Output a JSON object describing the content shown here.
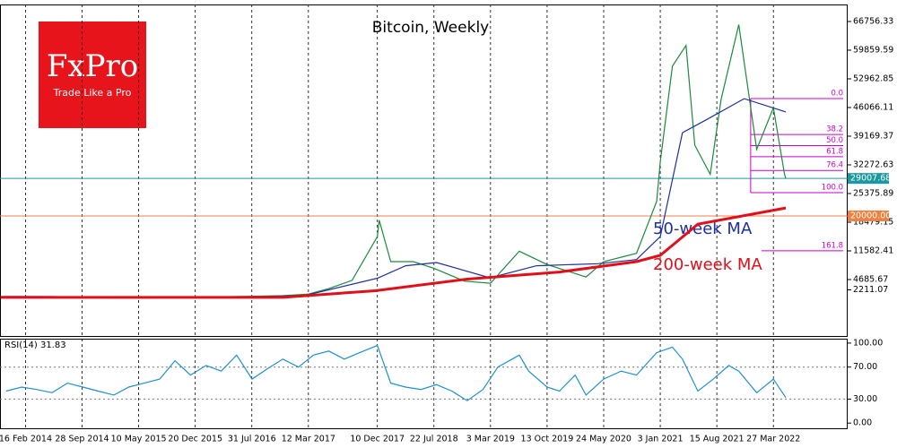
{
  "logo": {
    "name": "FxPro",
    "tagline": "Trade Like a Pro"
  },
  "chart_data": [
    {
      "type": "line",
      "title": "Bitcoin, Weekly",
      "grid": true,
      "xlim": [
        "2013-11-07",
        "2023-01-15"
      ],
      "xticks": [
        {
          "value": "2014-02-16",
          "label": "16 Feb 2014"
        },
        {
          "value": "2014-09-28",
          "label": "28 Sep 2014"
        },
        {
          "value": "2015-05-10",
          "label": "10 May 2015"
        },
        {
          "value": "2015-12-20",
          "label": "20 Dec 2015"
        },
        {
          "value": "2016-07-31",
          "label": "31 Jul 2016"
        },
        {
          "value": "2017-03-12",
          "label": "12 Mar 2017"
        },
        {
          "value": "2017-12-10",
          "label": "10 Dec 2017"
        },
        {
          "value": "2018-07-22",
          "label": "22 Jul 2018"
        },
        {
          "value": "2019-03-03",
          "label": "3 Mar 2019"
        },
        {
          "value": "2019-10-13",
          "label": "13 Oct 2019"
        },
        {
          "value": "2020-05-24",
          "label": "24 May 2020"
        },
        {
          "value": "2021-01-03",
          "label": "3 Jan 2021"
        },
        {
          "value": "2021-08-15",
          "label": "15 Aug 2021"
        },
        {
          "value": "2022-03-27",
          "label": "27 Mar 2022"
        }
      ],
      "ylim": [
        -8891,
        70851
      ],
      "yticks": [
        66756.33,
        59859.59,
        52962.85,
        46066.11,
        39169.37,
        32272.63,
        25375.89,
        18479.15,
        11582.41,
        4685.67,
        2211.07
      ],
      "series": [
        {
          "color": "#1c8a3c",
          "x": [
            "2013-11-10",
            "2014-02-16",
            "2014-08-01",
            "2015-01-15",
            "2015-06-01",
            "2015-12-01",
            "2016-06-01",
            "2016-12-01",
            "2017-03-12",
            "2017-06-01",
            "2017-09-01",
            "2017-12-10",
            "2017-12-17",
            "2018-02-01",
            "2018-05-01",
            "2018-07-22",
            "2018-11-20",
            "2019-03-03",
            "2019-06-25",
            "2019-10-13",
            "2020-03-15",
            "2020-05-24",
            "2020-10-01",
            "2020-12-20",
            "2021-01-03",
            "2021-02-20",
            "2021-04-15",
            "2021-05-20",
            "2021-07-20",
            "2021-09-01",
            "2021-11-10",
            "2022-01-20",
            "2022-03-27",
            "2022-05-10",
            "2022-05-15"
          ],
          "values": [
            600,
            600,
            550,
            250,
            230,
            430,
            600,
            800,
            1200,
            2500,
            4500,
            15000,
            19000,
            9000,
            9000,
            7400,
            4300,
            3800,
            11500,
            8300,
            5300,
            9000,
            11000,
            23500,
            33000,
            56000,
            61000,
            37000,
            30000,
            48000,
            66000,
            36000,
            46000,
            30000,
            29007.68
          ]
        },
        {
          "name": "50-week MA",
          "color": "#1f2fa0",
          "x": [
            "2013-11-10",
            "2014-06-01",
            "2015-06-01",
            "2016-06-01",
            "2017-03-01",
            "2017-12-10",
            "2018-04-01",
            "2018-08-01",
            "2019-03-01",
            "2019-09-01",
            "2020-05-01",
            "2020-10-01",
            "2021-01-03",
            "2021-04-01",
            "2021-07-01",
            "2021-12-01",
            "2022-05-15"
          ],
          "values": [
            600,
            600,
            300,
            400,
            900,
            5000,
            8000,
            8780,
            5100,
            8000,
            8500,
            9500,
            15000,
            40000,
            43000,
            48200,
            45000
          ]
        },
        {
          "name": "200-week MA",
          "color": "#e0101a",
          "x": [
            "2013-11-10",
            "2016-12-01",
            "2017-12-01",
            "2018-12-01",
            "2019-12-01",
            "2020-10-01",
            "2021-01-03",
            "2021-06-01",
            "2022-05-15"
          ],
          "values": [
            400,
            400,
            2000,
            4800,
            6500,
            9000,
            10500,
            18000,
            21900
          ]
        }
      ],
      "price_levels": [
        29007.68,
        {
          "value": 20000,
          "label": "20000.00"
        }
      ],
      "price_level_colors": [
        "#1a9aa0",
        "#f08040"
      ],
      "fib_start": "2021-12-27",
      "fib_color": "#cc00cc",
      "fib_levels": [
        {
          "label": "0.0",
          "price": 48222
        },
        {
          "label": "38.2",
          "price": 39580
        },
        {
          "label": "50.0",
          "price": 36911
        },
        {
          "label": "61.8",
          "price": 34242
        },
        {
          "label": "76.4",
          "price": 30939
        },
        {
          "label": "100.0",
          "price": 25600
        },
        {
          "label": "161.8",
          "price": 11620
        }
      ]
    },
    {
      "type": "line",
      "title": "RSI(14) 31.83",
      "grid": true,
      "ylim": [
        -6.5,
        105.5
      ],
      "yticks": [
        {
          "value": 100,
          "label": "100.00"
        },
        {
          "value": 70,
          "label": "70.00"
        },
        {
          "value": 30,
          "label": "30.00"
        },
        {
          "value": 0,
          "label": "0.00"
        }
      ],
      "series": [
        {
          "color": "#1e90d0",
          "x": [
            "2013-12-01",
            "2014-02-01",
            "2014-04-01",
            "2014-06-01",
            "2014-08-01",
            "2014-10-01",
            "2014-12-01",
            "2015-02-01",
            "2015-04-01",
            "2015-06-01",
            "2015-08-01",
            "2015-10-01",
            "2015-12-01",
            "2016-02-01",
            "2016-04-01",
            "2016-06-01",
            "2016-08-01",
            "2016-10-01",
            "2016-12-01",
            "2017-02-01",
            "2017-04-01",
            "2017-06-01",
            "2017-08-01",
            "2017-10-01",
            "2017-12-10",
            "2018-02-01",
            "2018-04-01",
            "2018-06-01",
            "2018-08-01",
            "2018-10-01",
            "2018-12-01",
            "2019-02-01",
            "2019-04-01",
            "2019-06-25",
            "2019-08-01",
            "2019-10-13",
            "2019-12-01",
            "2020-02-01",
            "2020-03-15",
            "2020-05-24",
            "2020-08-01",
            "2020-10-01",
            "2020-12-20",
            "2021-02-20",
            "2021-04-01",
            "2021-06-01",
            "2021-08-01",
            "2021-10-01",
            "2021-11-10",
            "2022-01-20",
            "2022-03-27",
            "2022-05-15"
          ],
          "values": [
            40,
            45,
            42,
            38,
            50,
            45,
            40,
            35,
            45,
            50,
            55,
            78,
            60,
            72,
            65,
            85,
            55,
            68,
            80,
            70,
            85,
            90,
            80,
            88,
            97,
            50,
            45,
            42,
            48,
            40,
            28,
            42,
            70,
            85,
            65,
            45,
            40,
            60,
            35,
            55,
            65,
            60,
            88,
            95,
            80,
            40,
            55,
            72,
            65,
            38,
            55,
            31.83
          ]
        }
      ]
    }
  ]
}
